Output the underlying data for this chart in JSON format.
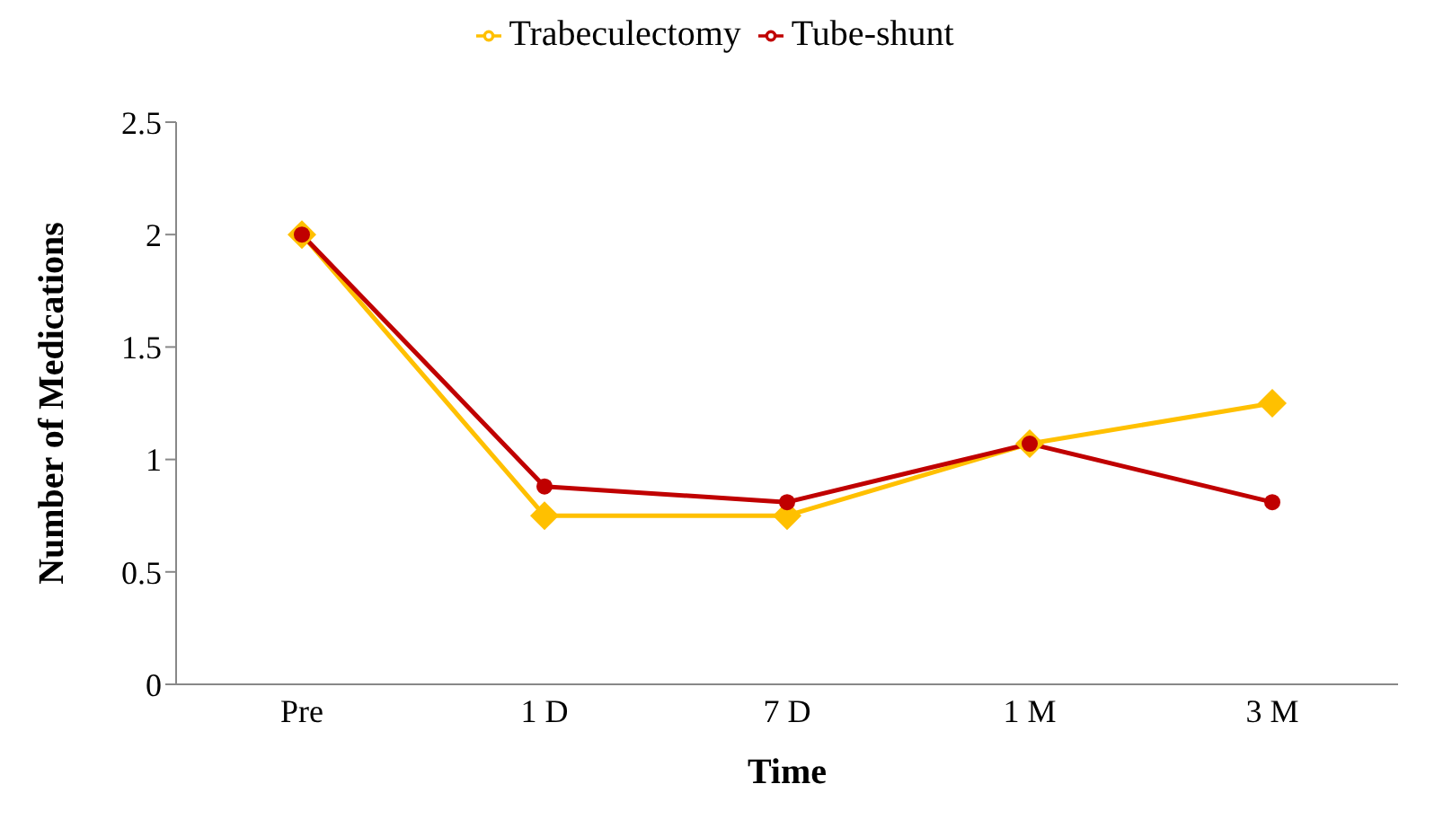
{
  "chart_data": {
    "type": "line",
    "xlabel": "Time",
    "ylabel": "Number of Medications",
    "categories": [
      "Pre",
      "1 D",
      "7 D",
      "1 M",
      "3 M"
    ],
    "series": [
      {
        "name": "Trabeculectomy",
        "color": "#ffc000",
        "marker": "diamond",
        "values": [
          2,
          0.75,
          0.75,
          1.07,
          1.25
        ]
      },
      {
        "name": "Tube-shunt",
        "color": "#c00000",
        "marker": "circle",
        "values": [
          2,
          0.88,
          0.81,
          1.07,
          0.81
        ]
      }
    ],
    "ylim": [
      0,
      2.5
    ],
    "yticks": [
      0,
      0.5,
      1,
      1.5,
      2,
      2.5
    ],
    "grid": false,
    "legend": "top"
  }
}
